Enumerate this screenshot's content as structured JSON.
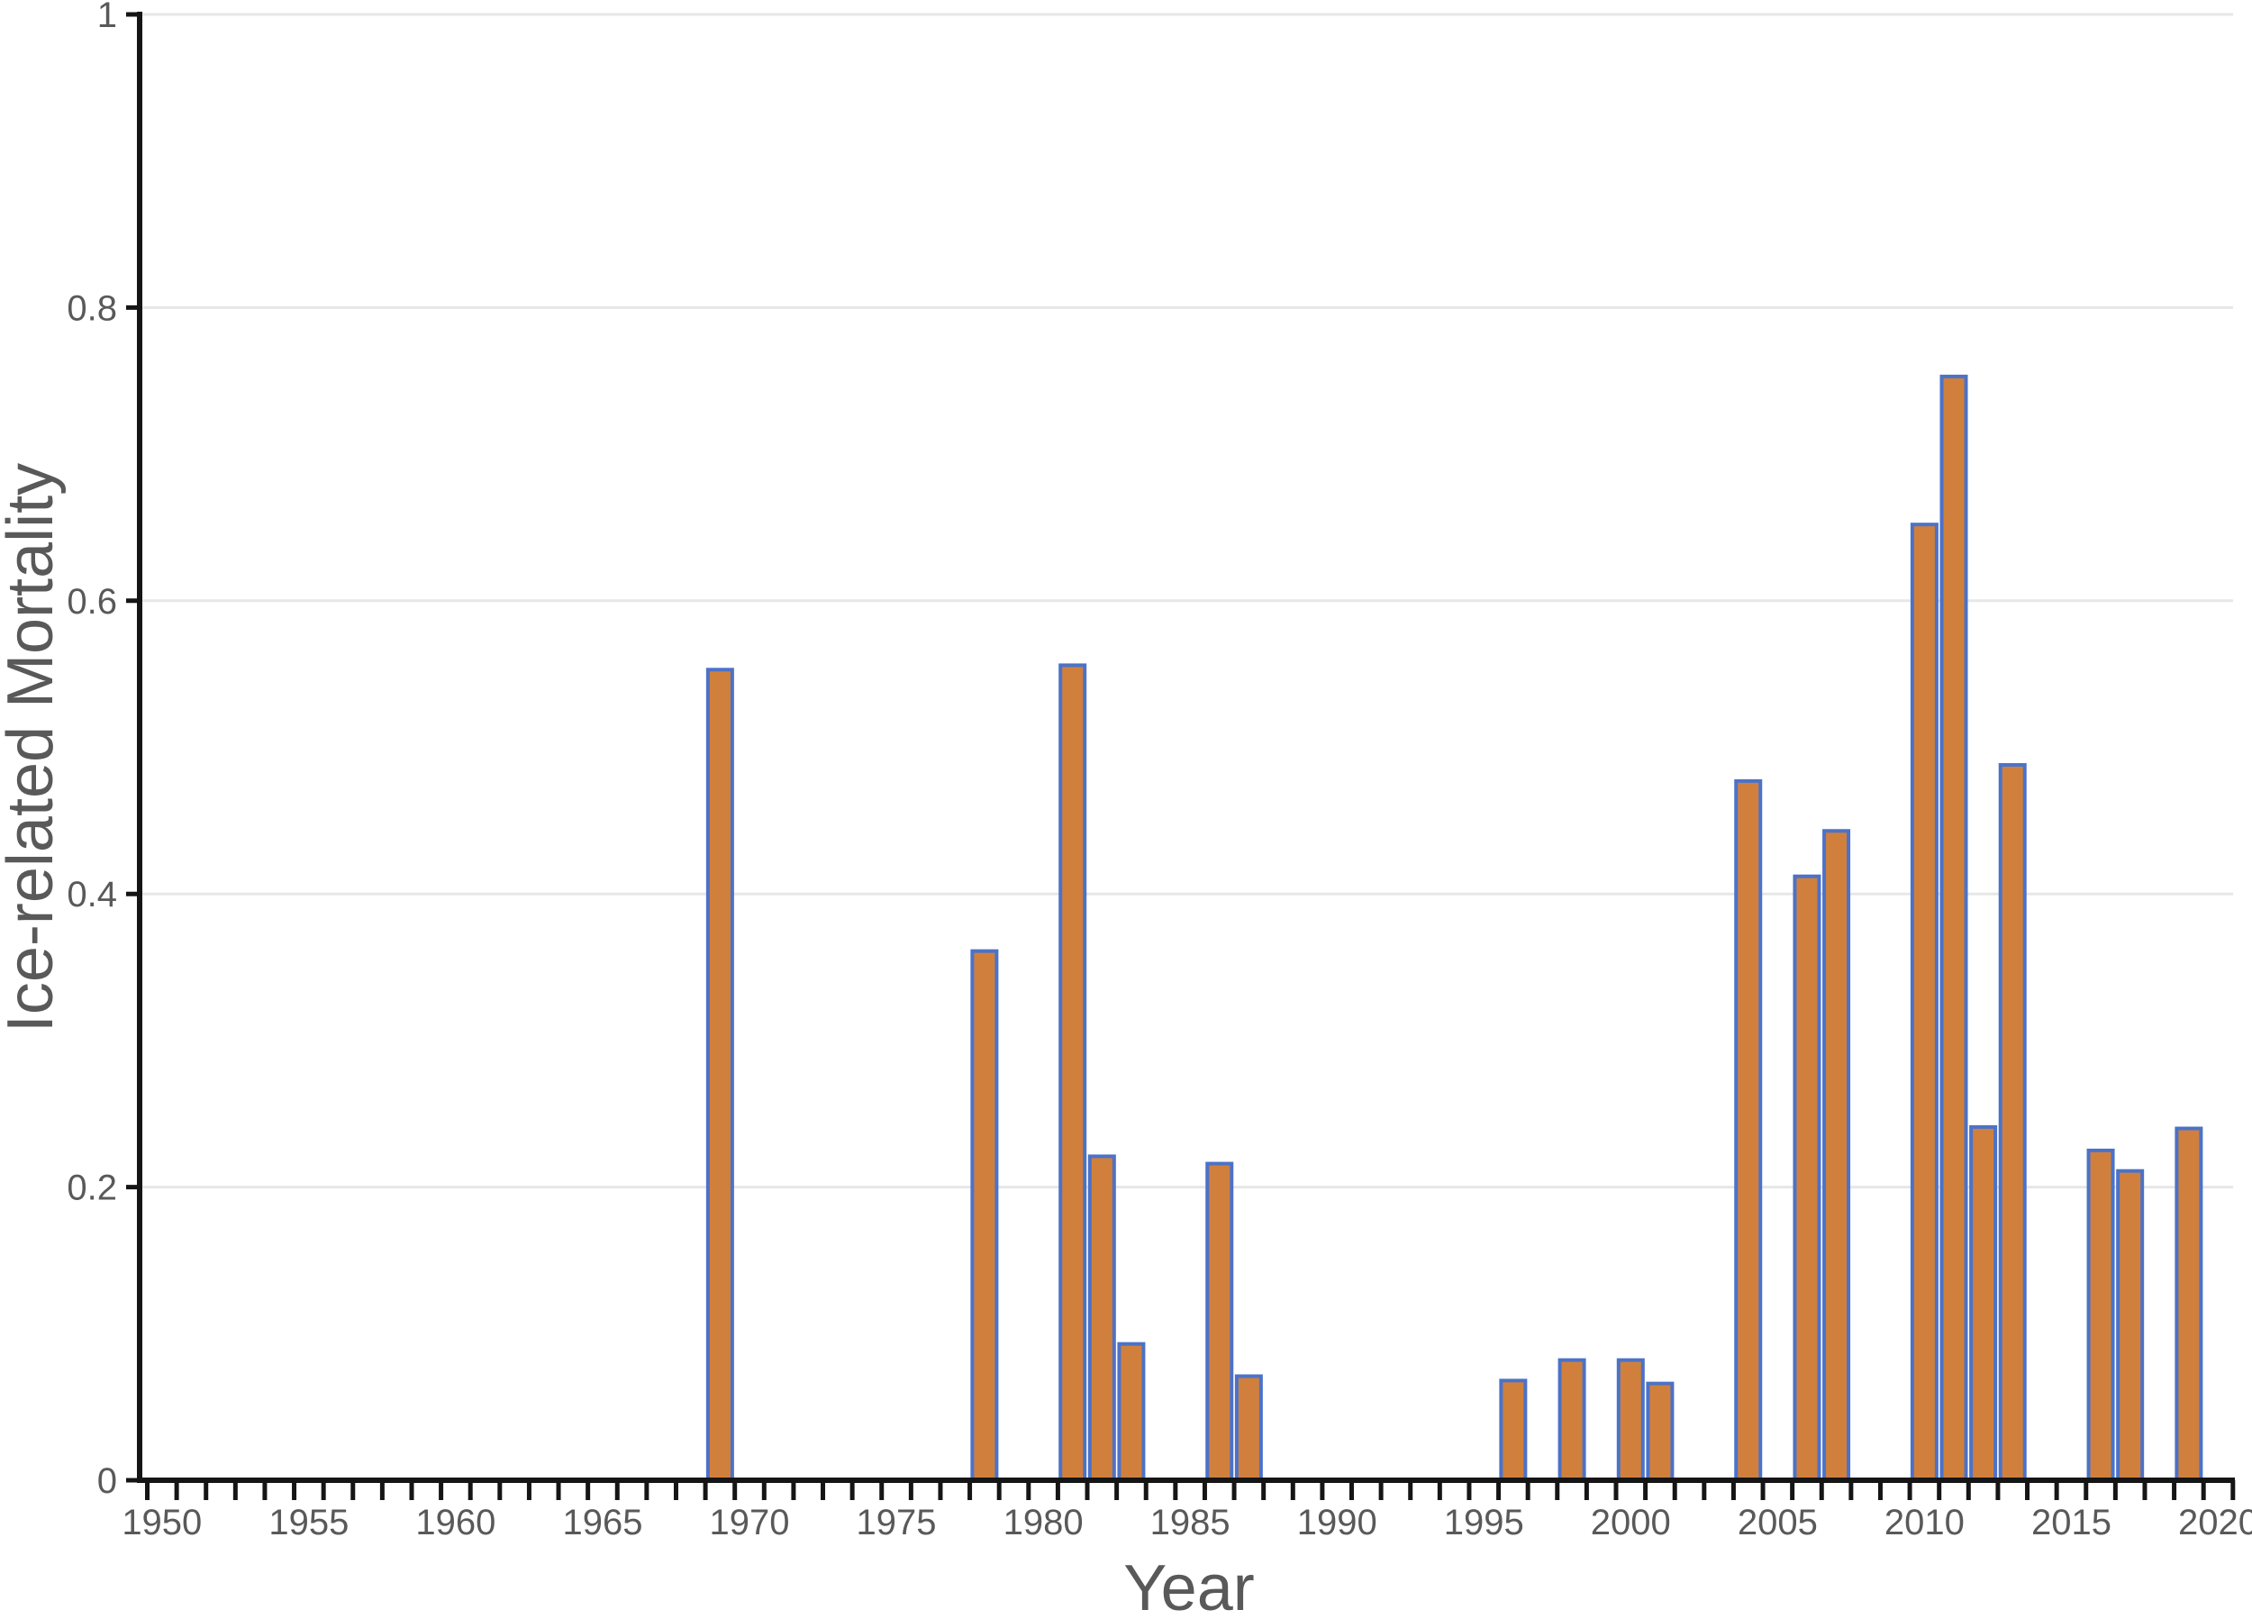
{
  "chart_data": {
    "type": "bar",
    "title": "",
    "xlabel": "Year",
    "ylabel": "Ice-related Mortality",
    "x": [
      1969,
      1978,
      1981,
      1982,
      1983,
      1986,
      1987,
      1996,
      1998,
      2000,
      2001,
      2004,
      2006,
      2007,
      2010,
      2011,
      2012,
      2013,
      2016,
      2017,
      2019
    ],
    "values": [
      0.553,
      0.361,
      0.556,
      0.221,
      0.093,
      0.216,
      0.071,
      0.068,
      0.082,
      0.082,
      0.066,
      0.477,
      0.412,
      0.443,
      0.652,
      0.753,
      0.241,
      0.488,
      0.225,
      0.211,
      0.24
    ],
    "xlim": [
      1949.5,
      2020.5
    ],
    "ylim": [
      0,
      1
    ],
    "x_major_ticks": [
      1950,
      1955,
      1960,
      1965,
      1970,
      1975,
      1980,
      1985,
      1990,
      1995,
      2000,
      2005,
      2010,
      2015,
      2020
    ],
    "x_minor_tick_interval": 1,
    "y_ticks": [
      0,
      0.2,
      0.4,
      0.6,
      0.8,
      1
    ],
    "y_tick_labels": [
      "0",
      "0.2",
      "0.4",
      "0.6",
      "0.8",
      "1"
    ],
    "grid": "horizontal",
    "legend": "none",
    "colors": {
      "bar_fill": "#d0803c",
      "bar_border": "#4c72c8",
      "grid": "#e7e7e7",
      "axis": "#151515",
      "text": "#595959",
      "background": "#ffffff"
    }
  }
}
